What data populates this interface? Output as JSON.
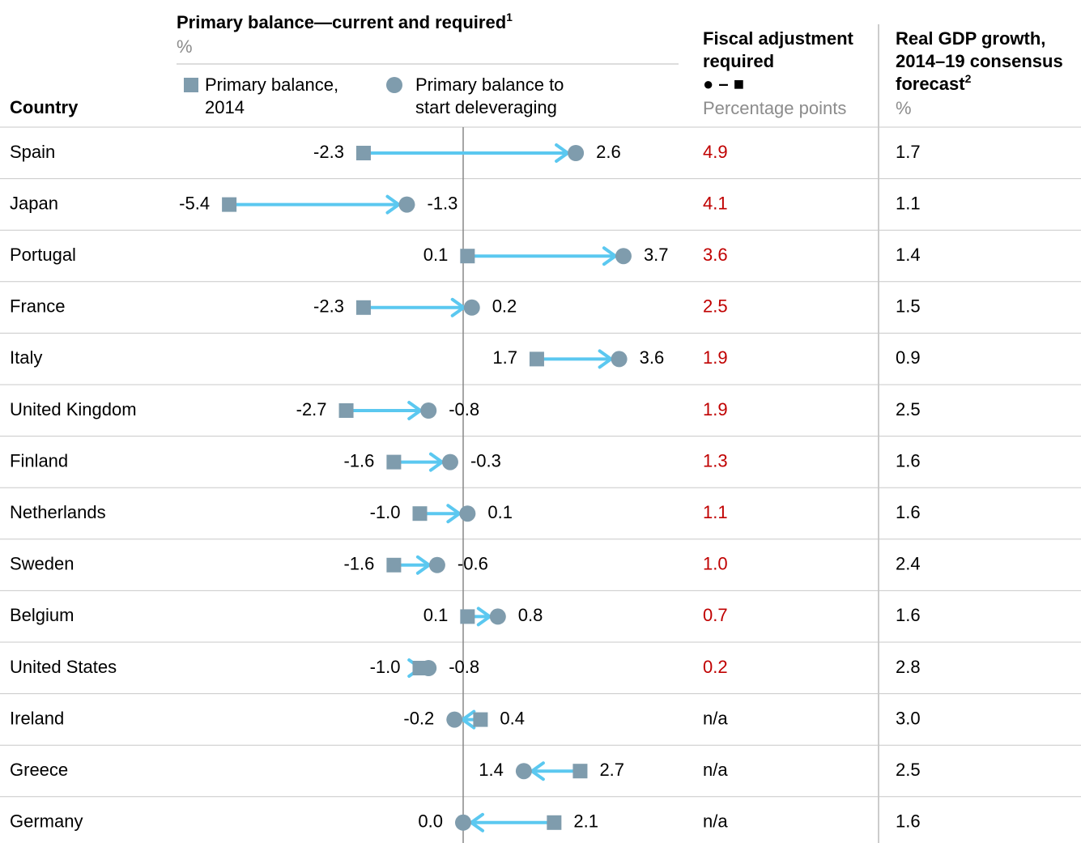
{
  "chart_data": {
    "type": "dumbbell",
    "title": "Primary balance—current and required",
    "title_note": "1",
    "unit": "%",
    "category_header": "Country",
    "categories": [
      "Spain",
      "Japan",
      "Portugal",
      "France",
      "Italy",
      "United Kingdom",
      "Finland",
      "Netherlands",
      "Sweden",
      "Belgium",
      "United States",
      "Ireland",
      "Greece",
      "Germany"
    ],
    "series": [
      {
        "name": "Primary balance, 2014",
        "color": "#7f9cad",
        "marker": "square",
        "values": [
          -2.3,
          -5.4,
          0.1,
          -2.3,
          1.7,
          -2.7,
          -1.6,
          -1.0,
          -1.6,
          0.1,
          -1.0,
          0.4,
          2.7,
          2.1
        ],
        "value_labels": [
          "-2.3",
          "-5.4",
          "0.1",
          "-2.3",
          "1.7",
          "-2.7",
          "-1.6",
          "-1.0",
          "-1.6",
          "0.1",
          "-1.0",
          "0.4",
          "2.7",
          "2.1"
        ]
      },
      {
        "name": "Primary balance to start deleveraging",
        "color": "#7f9cad",
        "marker": "circle",
        "values": [
          2.6,
          -1.3,
          3.7,
          0.2,
          3.6,
          -0.8,
          -0.3,
          0.1,
          -0.6,
          0.8,
          -0.8,
          -0.2,
          1.4,
          0.0
        ],
        "value_labels": [
          "2.6",
          "-1.3",
          "3.7",
          "0.2",
          "3.6",
          "-0.8",
          "-0.3",
          "0.1",
          "-0.6",
          "0.8",
          "-0.8",
          "-0.2",
          "1.4",
          "0.0"
        ]
      }
    ],
    "arrow_color": "#5bc8f0",
    "xlim": [
      -7,
      5
    ],
    "zero_line": true,
    "columns": [
      {
        "title": "Fiscal adjustment required",
        "formula": "● – ■",
        "unit": "Percentage points",
        "color": "#c00000",
        "values": [
          4.9,
          4.1,
          3.6,
          2.5,
          1.9,
          1.9,
          1.3,
          1.1,
          1.0,
          0.7,
          0.2,
          null,
          null,
          null
        ],
        "value_labels": [
          "4.9",
          "4.1",
          "3.6",
          "2.5",
          "1.9",
          "1.9",
          "1.3",
          "1.1",
          "1.0",
          "0.7",
          "0.2",
          "n/a",
          "n/a",
          "n/a"
        ]
      },
      {
        "title": "Real GDP growth, 2014–19 consensus forecast",
        "title_note": "2",
        "unit": "%",
        "color": "#000000",
        "values": [
          1.7,
          1.1,
          1.4,
          1.5,
          0.9,
          2.5,
          1.6,
          1.6,
          2.4,
          1.6,
          2.8,
          3.0,
          2.5,
          1.6
        ],
        "value_labels": [
          "1.7",
          "1.1",
          "1.4",
          "1.5",
          "0.9",
          "2.5",
          "1.6",
          "1.6",
          "2.4",
          "1.6",
          "2.8",
          "3.0",
          "2.5",
          "1.6"
        ]
      }
    ]
  }
}
